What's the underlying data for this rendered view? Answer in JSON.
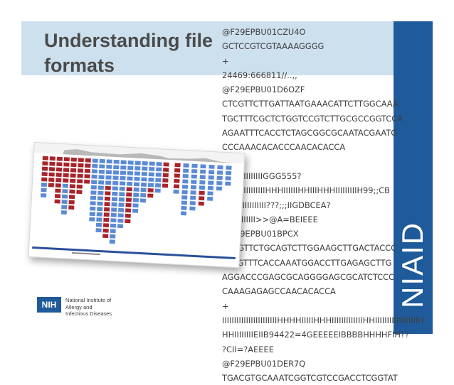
{
  "slide": {
    "title_line1": "Understanding file",
    "title_line2": "formats",
    "fastq_lines": [
      "@F29EPBU01CZU4O",
      "GCTCCGTCGTAAAAGGGG",
      "+",
      "24469:666811//..,,",
      "@F29EPBU01D6OZF",
      "CTCGTTCTTGATTAATGAAACATTCTTGGCAAA",
      "TGCTTTCGCTCTGGTCCGTCTTGCGCCGGTCCA",
      "AGAATTTCACCTCTAGCGGCGCAATACGAATG",
      "CCCAAACACACCCAACACACCA",
      "+",
      "IIIIIIIIIIIIIIIIIGGG555?",
      "IIIIIIIIIIIIIIIIIIHHHIIIIIIHHIIIHHHIIIIIIIIIH99;;CB",
      "BB?IIIIIIIIIIII???;;;IIGDBCEA?",
      "IIIIIIIIIIIIII>>@A=BEIEEE",
      "@F29EPBU01BPCX",
      "CTCGTTCTGCAGTCTTGGAAGCTTGACTACCC",
      "TACGTTTCACCAAATGGACCTTGAGAGCTTG",
      "AGGACCCGAGCGCAGGGGAGCGCATCTCCC",
      "CAAAGAGAGCCAACACACCA",
      "+",
      "IIIIIIIIIIIIIIIIIIIIIIIHHHHIIIIIHHHIIIIIIIIIIIIIHHIIIIIIIIIIIIIIIIIIH",
      "HHIIIIIIIIEIIB94422=4GEEEEEIBBBBHHHHFIH??",
      "?CII=?AEEEE",
      "@F29EPBU01DER7Q",
      "TGACGTGCAAATCGGTCGTCCGACCTCGGTAT"
    ],
    "niaid_text": "NIAID",
    "nih_logo_text": "NIH",
    "nih_name_line1": "National Institute of",
    "nih_name_line2": "Allergy and",
    "nih_name_line3": "Infectious Diseases"
  },
  "colors": {
    "title_band": "#cde0ee",
    "niaid_band": "#1f5b9a",
    "read_forward": "#a8242a",
    "read_reverse": "#5a8ad6"
  },
  "icons": {
    "viewer_image": "genome-alignment-viewer"
  }
}
